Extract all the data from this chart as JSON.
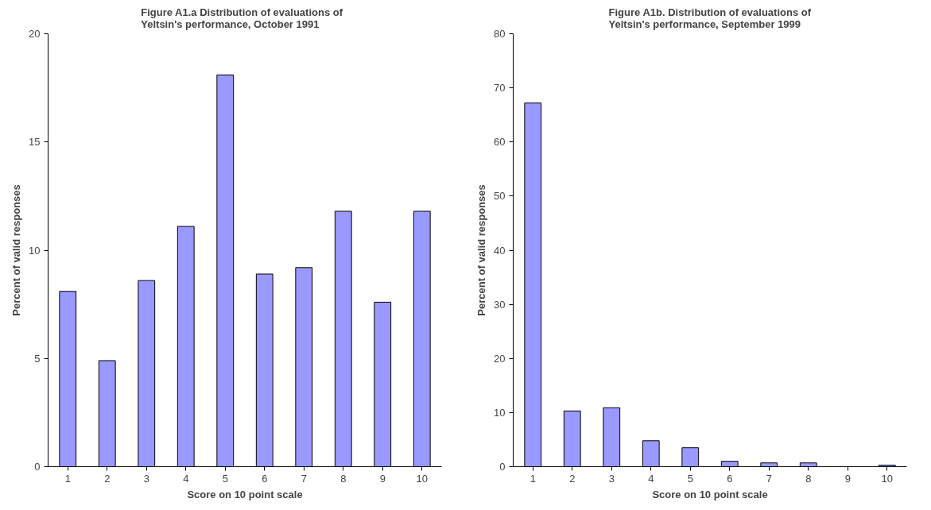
{
  "chart_data": [
    {
      "type": "bar",
      "title": "Figure A1.a   Distribution of evaluations of\nYeltsin's performance, October 1991",
      "xlabel": "Score on 10 point scale",
      "ylabel": "Percent of valid responses",
      "categories": [
        "1",
        "2",
        "3",
        "4",
        "5",
        "6",
        "7",
        "8",
        "9",
        "10"
      ],
      "color": "#9999ff",
      "ylim": [
        0,
        20
      ],
      "yticks": [
        0,
        5,
        10,
        15,
        20
      ],
      "grid": false,
      "values": [
        8.1,
        4.9,
        8.6,
        11.1,
        18.1,
        8.9,
        9.2,
        11.8,
        7.6,
        11.8
      ]
    },
    {
      "type": "bar",
      "title": "Figure A1b. Distribution of evaluations of\nYeltsin's performance, September 1999",
      "xlabel": "Score on 10 point scale",
      "ylabel": "Percent of valid responses",
      "categories": [
        "1",
        "2",
        "3",
        "4",
        "5",
        "6",
        "7",
        "8",
        "9",
        "10"
      ],
      "color": "#9999ff",
      "ylim": [
        0,
        80
      ],
      "yticks": [
        0,
        10,
        20,
        30,
        40,
        50,
        60,
        70,
        80
      ],
      "grid": false,
      "values": [
        67.2,
        10.3,
        10.9,
        4.8,
        3.5,
        1.0,
        0.7,
        0.7,
        0,
        0.3
      ]
    }
  ]
}
